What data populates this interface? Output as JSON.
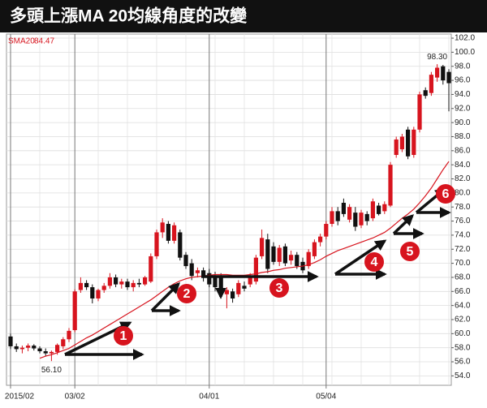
{
  "chart_data": {
    "type": "candlestick",
    "title": "多頭上漲MA 20均線角度的改變",
    "categories": [
      "2015/02",
      null,
      null,
      null,
      null,
      null,
      null,
      null,
      null,
      null,
      null,
      "03/02",
      null,
      null,
      null,
      null,
      null,
      null,
      null,
      null,
      null,
      null,
      null,
      null,
      null,
      null,
      null,
      null,
      null,
      null,
      null,
      null,
      null,
      null,
      "04/01",
      null,
      null,
      null,
      null,
      null,
      null,
      null,
      null,
      null,
      null,
      null,
      null,
      null,
      null,
      null,
      null,
      null,
      null,
      null,
      "05/04",
      null,
      null,
      null,
      null,
      null,
      null,
      null,
      null,
      null,
      null,
      null,
      null,
      null,
      null,
      null,
      null,
      null,
      null,
      null,
      null,
      null
    ],
    "open": [
      59.6,
      58.2,
      57.8,
      58.0,
      58.3,
      57.9,
      57.5,
      57.2,
      57.4,
      58.2,
      59.2,
      60.5,
      66.2,
      67.2,
      66.6,
      65.0,
      66.2,
      66.8,
      68.0,
      67.0,
      67.4,
      66.6,
      67.2,
      67.0,
      67.4,
      71.0,
      74.4,
      75.6,
      73.2,
      74.4,
      71.2,
      70.0,
      68.6,
      69.0,
      68.6,
      68.2,
      68.0,
      65.6,
      66.0,
      65.6,
      66.8,
      67.0,
      67.4,
      71.0,
      73.4,
      72.4,
      70.2,
      72.4,
      70.4,
      71.2,
      70.2,
      69.6,
      71.0,
      73.0,
      73.8,
      75.6,
      77.4,
      78.6,
      76.2,
      77.2,
      75.4,
      77.0,
      76.4,
      78.2,
      77.4,
      78.2,
      85.4,
      86.2,
      89.0,
      85.4,
      89.0,
      94.6,
      94.2,
      96.4,
      98.0,
      97.2
    ],
    "high": [
      60.0,
      58.6,
      58.3,
      58.6,
      58.5,
      58.2,
      57.9,
      57.6,
      58.6,
      59.5,
      60.8,
      66.3,
      68.0,
      67.6,
      67.0,
      66.4,
      67.2,
      68.6,
      68.4,
      67.8,
      67.8,
      67.6,
      67.8,
      68.2,
      71.4,
      74.8,
      76.4,
      76.0,
      75.8,
      74.8,
      71.6,
      70.6,
      69.4,
      69.4,
      69.2,
      68.8,
      68.6,
      66.6,
      66.4,
      67.6,
      67.4,
      68.6,
      71.2,
      74.8,
      74.2,
      73.0,
      72.6,
      72.8,
      71.8,
      71.6,
      70.8,
      72.0,
      73.4,
      74.2,
      76.0,
      78.0,
      78.0,
      79.2,
      78.4,
      78.0,
      77.6,
      77.4,
      79.2,
      78.6,
      78.8,
      84.4,
      88.0,
      88.4,
      89.4,
      89.4,
      94.4,
      95.0,
      97.2,
      98.3,
      98.2,
      97.6
    ],
    "low": [
      57.8,
      57.4,
      57.2,
      57.5,
      57.6,
      57.2,
      56.8,
      56.1,
      57.0,
      57.8,
      58.8,
      60.2,
      65.8,
      66.2,
      64.3,
      64.6,
      65.8,
      66.4,
      66.6,
      66.4,
      66.2,
      66.0,
      66.6,
      66.8,
      67.2,
      70.6,
      73.6,
      72.8,
      72.8,
      70.4,
      69.2,
      67.6,
      68.0,
      67.4,
      66.6,
      66.0,
      65.0,
      63.6,
      64.4,
      65.2,
      66.0,
      66.6,
      67.0,
      70.6,
      68.6,
      69.8,
      69.6,
      69.6,
      69.8,
      69.2,
      68.6,
      69.2,
      70.6,
      72.4,
      73.4,
      75.2,
      75.4,
      76.6,
      75.8,
      74.6,
      75.0,
      75.4,
      76.0,
      76.8,
      77.0,
      78.0,
      85.0,
      85.8,
      84.8,
      85.0,
      88.6,
      93.4,
      93.8,
      95.8,
      95.4,
      91.6
    ],
    "close": [
      58.2,
      57.8,
      58.0,
      58.3,
      57.9,
      57.5,
      57.2,
      57.4,
      58.4,
      59.2,
      60.4,
      66.0,
      67.2,
      66.6,
      65.0,
      66.2,
      66.8,
      68.0,
      67.0,
      67.4,
      66.6,
      67.2,
      67.0,
      68.0,
      71.0,
      74.4,
      75.8,
      73.2,
      75.4,
      70.8,
      69.6,
      68.2,
      69.0,
      68.2,
      67.0,
      66.6,
      65.6,
      66.2,
      65.0,
      67.2,
      66.4,
      68.2,
      70.8,
      73.6,
      69.2,
      70.2,
      72.2,
      70.0,
      71.2,
      69.6,
      69.0,
      71.6,
      73.0,
      73.8,
      75.6,
      77.4,
      76.0,
      77.0,
      78.0,
      75.2,
      77.2,
      76.0,
      78.8,
      77.0,
      78.4,
      84.0,
      87.6,
      88.0,
      85.2,
      89.0,
      94.0,
      93.8,
      96.8,
      97.8,
      96.0,
      95.6
    ],
    "up_color": "#d7141e",
    "down_color": "#111111",
    "sma": {
      "name": "SMA20",
      "color": "#d7141e",
      "values": [
        null,
        null,
        null,
        null,
        null,
        56.5,
        56.8,
        57.0,
        57.3,
        57.6,
        57.9,
        58.4,
        58.9,
        59.4,
        59.8,
        60.3,
        60.8,
        61.3,
        61.8,
        62.3,
        62.8,
        63.3,
        63.8,
        64.3,
        64.8,
        65.4,
        66.0,
        66.6,
        67.1,
        67.5,
        67.8,
        68.0,
        68.1,
        68.2,
        68.3,
        68.4,
        68.4,
        68.4,
        68.3,
        68.3,
        68.3,
        68.4,
        68.5,
        68.7,
        68.8,
        69.0,
        69.1,
        69.3,
        69.4,
        69.5,
        69.6,
        69.8,
        70.1,
        70.5,
        71.0,
        71.4,
        71.8,
        72.1,
        72.4,
        72.7,
        73.0,
        73.3,
        73.6,
        74.0,
        74.4,
        75.0,
        75.7,
        76.4,
        77.0,
        77.7,
        78.6,
        79.6,
        80.7,
        82.0,
        83.3,
        84.47
      ]
    },
    "price_labels": [
      {
        "value": 56.1,
        "label": "56.10"
      },
      {
        "value": 98.3,
        "label": "98.30"
      }
    ],
    "markers": [
      "1",
      "2",
      "3",
      "4",
      "5",
      "6"
    ],
    "ylim": [
      52.66,
      102.58
    ],
    "yticks": [
      {
        "value": 54,
        "label": "54.0"
      },
      {
        "value": 56,
        "label": "56.0"
      },
      {
        "value": 58,
        "label": "58.0"
      },
      {
        "value": 60,
        "label": "60.0"
      },
      {
        "value": 62,
        "label": "62.0"
      },
      {
        "value": 64,
        "label": "64.0"
      },
      {
        "value": 66,
        "label": "66.0"
      },
      {
        "value": 68,
        "label": "68.0"
      },
      {
        "value": 70,
        "label": "70.0"
      },
      {
        "value": 72,
        "label": "72.0"
      },
      {
        "value": 74,
        "label": "74.0"
      },
      {
        "value": 76,
        "label": "76.0"
      },
      {
        "value": 78,
        "label": "78.0"
      },
      {
        "value": 80,
        "label": "80.0"
      },
      {
        "value": 82,
        "label": "82.0"
      },
      {
        "value": 84,
        "label": "84.0"
      },
      {
        "value": 86,
        "label": "86.0"
      },
      {
        "value": 88,
        "label": "88.0"
      },
      {
        "value": 90,
        "label": "90.0"
      },
      {
        "value": 92,
        "label": "92.0"
      },
      {
        "value": 94,
        "label": "94.0"
      },
      {
        "value": 96,
        "label": "96.0"
      },
      {
        "value": 98,
        "label": "98.0"
      },
      {
        "value": 100,
        "label": "100.0"
      },
      {
        "value": 102,
        "label": "102.0"
      }
    ],
    "grid": true
  }
}
